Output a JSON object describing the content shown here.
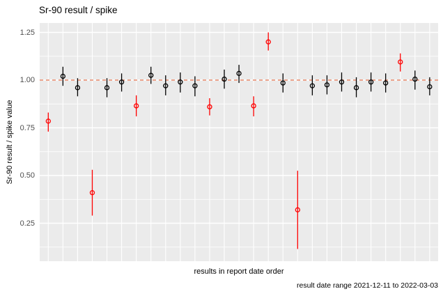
{
  "chart_data": {
    "type": "scatter",
    "subtype": "pointrange-with-error-bars",
    "title": "Sr-90 result / spike",
    "ylabel": "Sr-90 result / spike value",
    "xlabel": "results in report date order",
    "caption": "result date range 2021-12-11 to 2022-03-03",
    "legend_position": "none",
    "grid": "on",
    "ylim": [
      0.05,
      1.3
    ],
    "yticks": [
      {
        "value": 0.25,
        "label": "0.25"
      },
      {
        "value": 0.5,
        "label": "0.50"
      },
      {
        "value": 0.75,
        "label": "0.75"
      },
      {
        "value": 1.0,
        "label": "1.00"
      },
      {
        "value": 1.25,
        "label": "1.25"
      }
    ],
    "reference_line": {
      "y": 1.0,
      "style": "dashed",
      "color": "#E8896B"
    },
    "colors": {
      "normal_point": "#000000",
      "flagged_point": "#FF0000",
      "panel_background": "#EBEBEB",
      "gridline": "#FFFFFF",
      "tick_label": "#4D4D4D"
    },
    "points": [
      {
        "x": 1,
        "y": 0.785,
        "lo": 0.73,
        "hi": 0.83,
        "flagged": true
      },
      {
        "x": 2,
        "y": 1.02,
        "lo": 0.97,
        "hi": 1.07,
        "flagged": false
      },
      {
        "x": 3,
        "y": 0.96,
        "lo": 0.915,
        "hi": 1.01,
        "flagged": false
      },
      {
        "x": 4,
        "y": 0.41,
        "lo": 0.29,
        "hi": 0.53,
        "flagged": true
      },
      {
        "x": 5,
        "y": 0.96,
        "lo": 0.91,
        "hi": 1.01,
        "flagged": false
      },
      {
        "x": 6,
        "y": 0.99,
        "lo": 0.94,
        "hi": 1.035,
        "flagged": false
      },
      {
        "x": 7,
        "y": 0.865,
        "lo": 0.81,
        "hi": 0.92,
        "flagged": true
      },
      {
        "x": 8,
        "y": 1.025,
        "lo": 0.98,
        "hi": 1.07,
        "flagged": false
      },
      {
        "x": 9,
        "y": 0.97,
        "lo": 0.92,
        "hi": 1.025,
        "flagged": false
      },
      {
        "x": 10,
        "y": 0.99,
        "lo": 0.935,
        "hi": 1.04,
        "flagged": false
      },
      {
        "x": 11,
        "y": 0.97,
        "lo": 0.915,
        "hi": 1.02,
        "flagged": false
      },
      {
        "x": 12,
        "y": 0.86,
        "lo": 0.815,
        "hi": 0.905,
        "flagged": true
      },
      {
        "x": 13,
        "y": 1.005,
        "lo": 0.955,
        "hi": 1.055,
        "flagged": false
      },
      {
        "x": 14,
        "y": 1.035,
        "lo": 0.985,
        "hi": 1.08,
        "flagged": false
      },
      {
        "x": 15,
        "y": 0.865,
        "lo": 0.81,
        "hi": 0.915,
        "flagged": true
      },
      {
        "x": 16,
        "y": 1.2,
        "lo": 1.155,
        "hi": 1.25,
        "flagged": true
      },
      {
        "x": 17,
        "y": 0.985,
        "lo": 0.935,
        "hi": 1.035,
        "flagged": false
      },
      {
        "x": 18,
        "y": 0.32,
        "lo": 0.115,
        "hi": 0.525,
        "flagged": true
      },
      {
        "x": 19,
        "y": 0.97,
        "lo": 0.92,
        "hi": 1.025,
        "flagged": false
      },
      {
        "x": 20,
        "y": 0.975,
        "lo": 0.925,
        "hi": 1.025,
        "flagged": false
      },
      {
        "x": 21,
        "y": 0.99,
        "lo": 0.94,
        "hi": 1.04,
        "flagged": false
      },
      {
        "x": 22,
        "y": 0.96,
        "lo": 0.91,
        "hi": 1.015,
        "flagged": false
      },
      {
        "x": 23,
        "y": 0.99,
        "lo": 0.94,
        "hi": 1.04,
        "flagged": false
      },
      {
        "x": 24,
        "y": 0.985,
        "lo": 0.935,
        "hi": 1.035,
        "flagged": false
      },
      {
        "x": 25,
        "y": 1.095,
        "lo": 1.045,
        "hi": 1.14,
        "flagged": true
      },
      {
        "x": 26,
        "y": 1.005,
        "lo": 0.95,
        "hi": 1.05,
        "flagged": false
      },
      {
        "x": 27,
        "y": 0.965,
        "lo": 0.92,
        "hi": 1.015,
        "flagged": false
      }
    ]
  }
}
